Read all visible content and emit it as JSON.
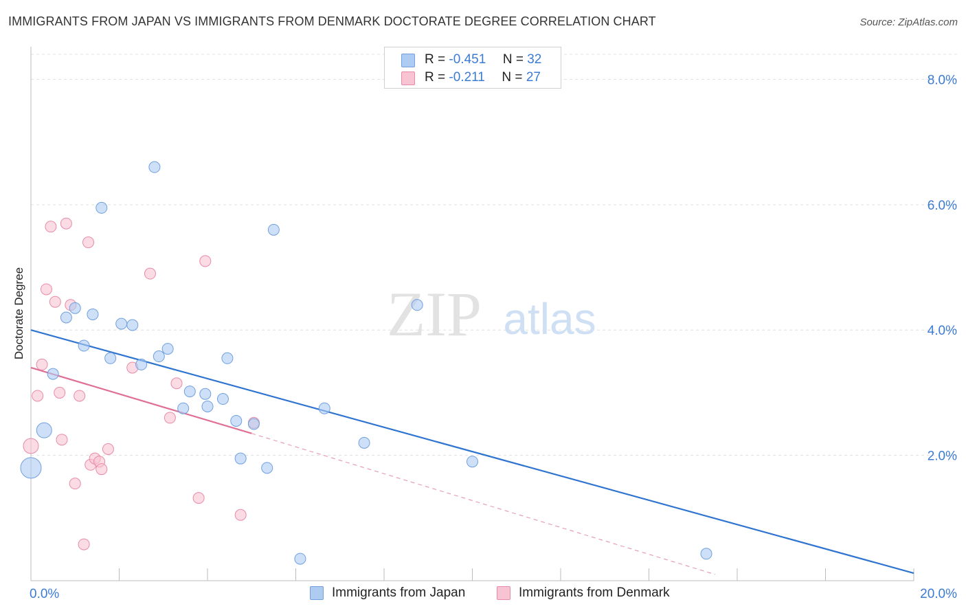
{
  "title": "IMMIGRANTS FROM JAPAN VS IMMIGRANTS FROM DENMARK DOCTORATE DEGREE CORRELATION CHART",
  "source": "Source: ZipAtlas.com",
  "watermark": {
    "zip": "ZIP",
    "atlas": "atlas"
  },
  "colors": {
    "japan_fill": "#aecbf2",
    "japan_stroke": "#6f9fe0",
    "japan_line": "#2f74d0",
    "denmark_fill": "#f8c3d2",
    "denmark_stroke": "#e98aa7",
    "denmark_line": "#e06f96",
    "axis_text": "#3a7bd5",
    "grid": "#e0e0e0"
  },
  "legend": {
    "rows": [
      {
        "r_label": "R =",
        "r_value": "-0.451",
        "n_label": "N =",
        "n_value": "32"
      },
      {
        "r_label": "R =",
        "r_value": "-0.211",
        "n_label": "N =",
        "n_value": "27"
      }
    ]
  },
  "chart_data": {
    "type": "scatter",
    "title": "IMMIGRANTS FROM JAPAN VS IMMIGRANTS FROM DENMARK DOCTORATE DEGREE CORRELATION CHART",
    "xlabel": "",
    "ylabel": "Doctorate Degree",
    "xlim": [
      0,
      20
    ],
    "ylim": [
      0,
      8.4
    ],
    "x_tick_labels": [
      "0.0%",
      "20.0%"
    ],
    "y_ticks": [
      2,
      4,
      6,
      8
    ],
    "y_tick_labels": [
      "2.0%",
      "4.0%",
      "6.0%",
      "8.0%"
    ],
    "grid": true,
    "legend_position": "top-center",
    "series": [
      {
        "name": "Immigrants from Japan",
        "r": -0.451,
        "n": 32,
        "trend": {
          "x": [
            0,
            20
          ],
          "y": [
            4.0,
            0.12
          ],
          "style": "solid"
        },
        "points": [
          {
            "x": 0.0,
            "y": 1.8,
            "s": 3
          },
          {
            "x": 0.3,
            "y": 2.4,
            "s": 2
          },
          {
            "x": 0.5,
            "y": 3.3,
            "s": 1
          },
          {
            "x": 0.8,
            "y": 4.2,
            "s": 1
          },
          {
            "x": 1.0,
            "y": 4.35,
            "s": 1
          },
          {
            "x": 1.2,
            "y": 3.75,
            "s": 1
          },
          {
            "x": 1.4,
            "y": 4.25,
            "s": 1
          },
          {
            "x": 1.6,
            "y": 5.95,
            "s": 1
          },
          {
            "x": 1.8,
            "y": 3.55,
            "s": 1
          },
          {
            "x": 2.05,
            "y": 4.1,
            "s": 1
          },
          {
            "x": 2.3,
            "y": 4.08,
            "s": 1
          },
          {
            "x": 2.5,
            "y": 3.45,
            "s": 1
          },
          {
            "x": 2.8,
            "y": 6.6,
            "s": 1
          },
          {
            "x": 2.9,
            "y": 3.58,
            "s": 1
          },
          {
            "x": 3.1,
            "y": 3.7,
            "s": 1
          },
          {
            "x": 3.45,
            "y": 2.75,
            "s": 1
          },
          {
            "x": 3.6,
            "y": 3.02,
            "s": 1
          },
          {
            "x": 3.95,
            "y": 2.98,
            "s": 1
          },
          {
            "x": 4.0,
            "y": 2.78,
            "s": 1
          },
          {
            "x": 4.35,
            "y": 2.9,
            "s": 1
          },
          {
            "x": 4.45,
            "y": 3.55,
            "s": 1
          },
          {
            "x": 4.65,
            "y": 2.55,
            "s": 1
          },
          {
            "x": 4.75,
            "y": 1.95,
            "s": 1
          },
          {
            "x": 5.05,
            "y": 2.5,
            "s": 1
          },
          {
            "x": 5.35,
            "y": 1.8,
            "s": 1
          },
          {
            "x": 5.5,
            "y": 5.6,
            "s": 1
          },
          {
            "x": 6.1,
            "y": 0.35,
            "s": 1
          },
          {
            "x": 6.65,
            "y": 2.75,
            "s": 1
          },
          {
            "x": 7.55,
            "y": 2.2,
            "s": 1
          },
          {
            "x": 8.75,
            "y": 4.4,
            "s": 1
          },
          {
            "x": 10.0,
            "y": 1.9,
            "s": 1
          },
          {
            "x": 15.3,
            "y": 0.43,
            "s": 1
          }
        ]
      },
      {
        "name": "Immigrants from Denmark",
        "r": -0.211,
        "n": 27,
        "trend": {
          "x": [
            0,
            5.0,
            15.5
          ],
          "y": [
            3.4,
            2.35,
            0.1
          ],
          "style": "solid-then-dashed"
        },
        "points": [
          {
            "x": 0.0,
            "y": 2.15,
            "s": 2
          },
          {
            "x": 0.15,
            "y": 2.95,
            "s": 1
          },
          {
            "x": 0.25,
            "y": 3.45,
            "s": 1
          },
          {
            "x": 0.35,
            "y": 4.65,
            "s": 1
          },
          {
            "x": 0.45,
            "y": 5.65,
            "s": 1
          },
          {
            "x": 0.55,
            "y": 4.45,
            "s": 1
          },
          {
            "x": 0.65,
            "y": 3.0,
            "s": 1
          },
          {
            "x": 0.7,
            "y": 2.25,
            "s": 1
          },
          {
            "x": 0.8,
            "y": 5.7,
            "s": 1
          },
          {
            "x": 0.9,
            "y": 4.4,
            "s": 1
          },
          {
            "x": 1.0,
            "y": 1.55,
            "s": 1
          },
          {
            "x": 1.1,
            "y": 2.95,
            "s": 1
          },
          {
            "x": 1.2,
            "y": 0.58,
            "s": 1
          },
          {
            "x": 1.3,
            "y": 5.4,
            "s": 1
          },
          {
            "x": 1.35,
            "y": 1.85,
            "s": 1
          },
          {
            "x": 1.45,
            "y": 1.95,
            "s": 1
          },
          {
            "x": 1.55,
            "y": 1.9,
            "s": 1
          },
          {
            "x": 1.6,
            "y": 1.78,
            "s": 1
          },
          {
            "x": 1.75,
            "y": 2.1,
            "s": 1
          },
          {
            "x": 2.3,
            "y": 3.4,
            "s": 1
          },
          {
            "x": 2.7,
            "y": 4.9,
            "s": 1
          },
          {
            "x": 3.15,
            "y": 2.6,
            "s": 1
          },
          {
            "x": 3.3,
            "y": 3.15,
            "s": 1
          },
          {
            "x": 3.8,
            "y": 1.32,
            "s": 1
          },
          {
            "x": 3.95,
            "y": 5.1,
            "s": 1
          },
          {
            "x": 4.75,
            "y": 1.05,
            "s": 1
          },
          {
            "x": 5.05,
            "y": 2.52,
            "s": 1
          }
        ]
      }
    ]
  }
}
